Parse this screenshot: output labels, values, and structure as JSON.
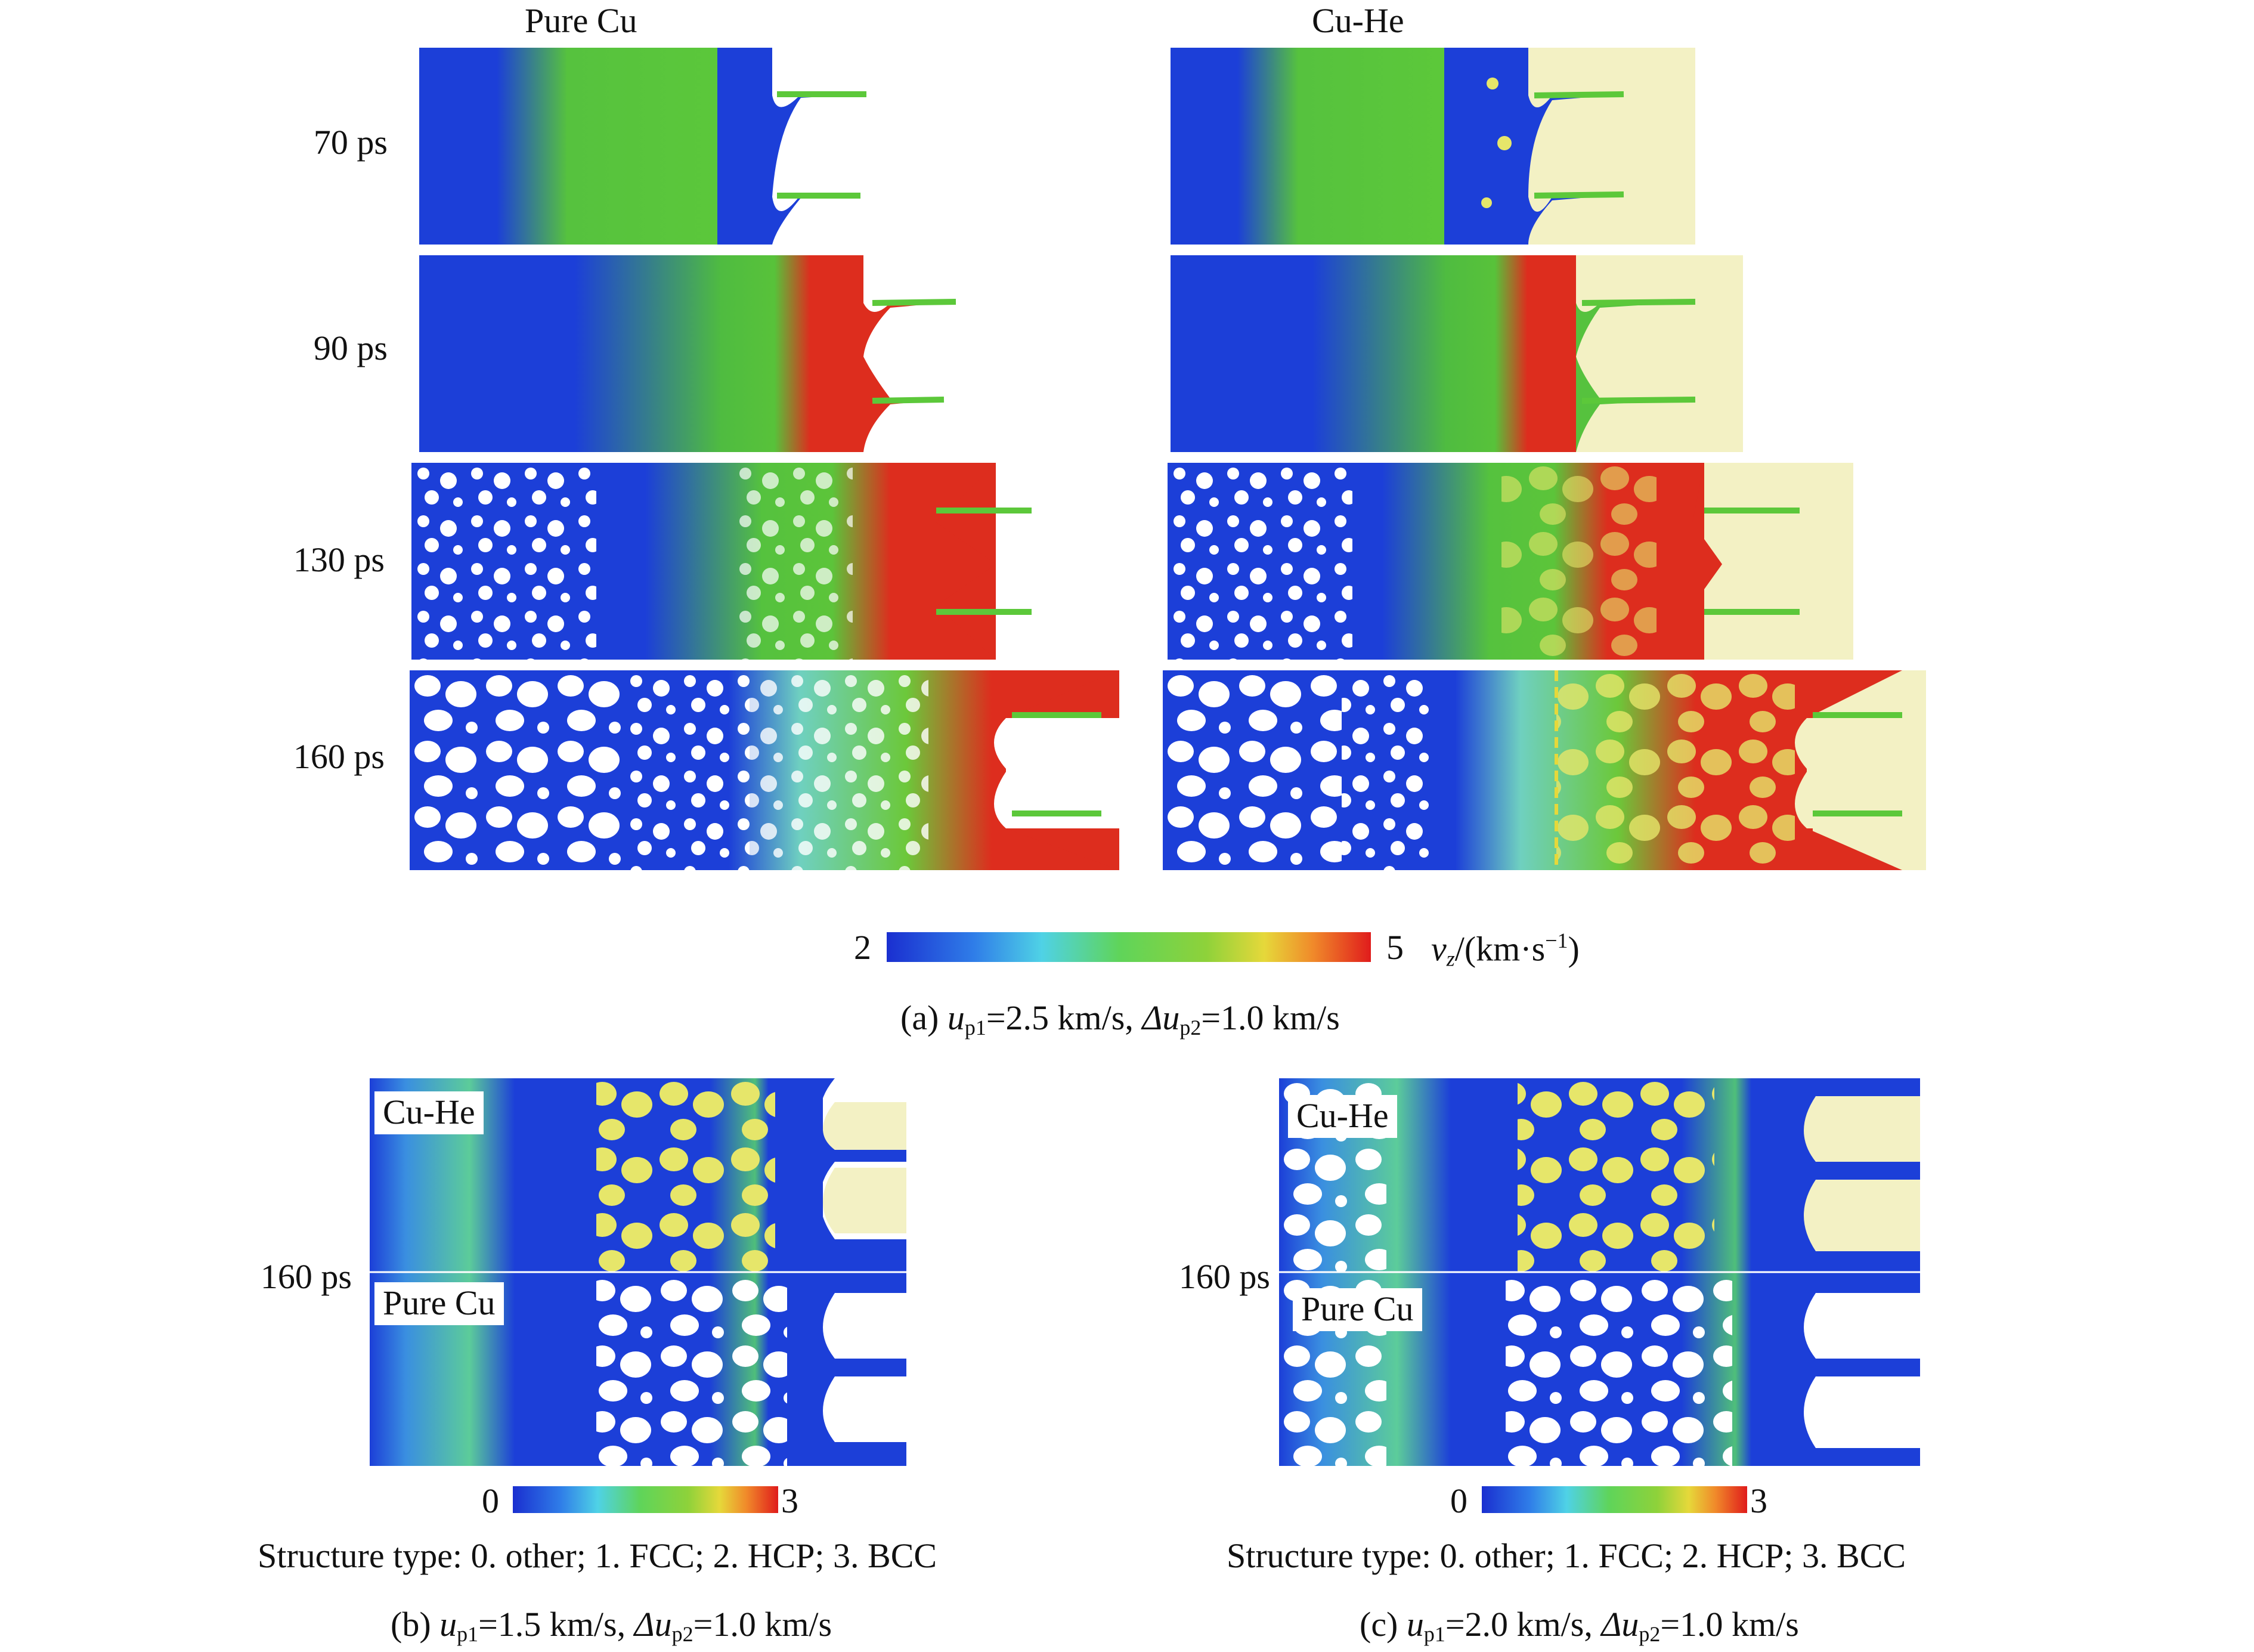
{
  "figure_a": {
    "col_headers": [
      "Pure Cu",
      "Cu-He"
    ],
    "times": [
      "70 ps",
      "90 ps",
      "130 ps",
      "160 ps"
    ],
    "colorbar": {
      "min": "2",
      "max": "5",
      "quantity_symbol": "v",
      "quantity_sub": "z",
      "quantity_unit_prefix": "/(km·s",
      "quantity_unit_exp": "−1",
      "quantity_unit_suffix": ")"
    },
    "caption": {
      "label": "(a)",
      "u1_sym": "u",
      "u1_sub": "p1",
      "u1_val": "=2.5 km/s,",
      "du_sym": "Δu",
      "du_sub": "p2",
      "du_val": "=1.0 km/s"
    }
  },
  "figure_b": {
    "time": "160 ps",
    "top_label": "Cu-He",
    "bottom_label": "Pure Cu",
    "colorbar": {
      "min": "0",
      "max": "3"
    },
    "structure_legend": "Structure type: 0. other; 1. FCC; 2. HCP; 3. BCC",
    "caption": {
      "label": "(b)",
      "u1_sym": "u",
      "u1_sub": "p1",
      "u1_val": "=1.5 km/s,",
      "du_sym": "Δu",
      "du_sub": "p2",
      "du_val": "=1.0 km/s"
    }
  },
  "figure_c": {
    "time": "160 ps",
    "top_label": "Cu-He",
    "bottom_label": "Pure Cu",
    "colorbar": {
      "min": "0",
      "max": "3"
    },
    "structure_legend": "Structure type: 0. other; 1. FCC; 2. HCP; 3. BCC",
    "caption": {
      "label": "(c)",
      "u1_sym": "u",
      "u1_sub": "p1",
      "u1_val": "=2.0 km/s,",
      "du_sym": "Δu",
      "du_sub": "p2",
      "du_val": "=1.0 km/s"
    }
  },
  "colors": {
    "blue": "#1f3fd6",
    "cyan": "#43c7e8",
    "green": "#55c83a",
    "yellow": "#d8e03a",
    "red": "#e0281e",
    "he_cream": "#f3f1c4",
    "void": "#ffffff"
  }
}
